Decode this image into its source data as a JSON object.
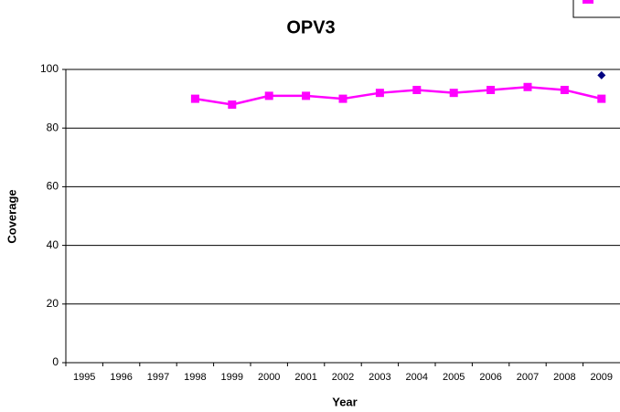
{
  "chart_data": {
    "type": "line",
    "title": "OPV3",
    "x_label": "Year",
    "y_label": "Coverage",
    "categories": [
      "1995",
      "1996",
      "1997",
      "1998",
      "1999",
      "2000",
      "2001",
      "2002",
      "2003",
      "2004",
      "2005",
      "2006",
      "2007",
      "2008",
      "2009"
    ],
    "series": [
      {
        "color": "#ff00ff",
        "marker": "square",
        "values": [
          null,
          null,
          null,
          90,
          88,
          91,
          91,
          90,
          92,
          93,
          92,
          93,
          94,
          93,
          90
        ]
      },
      {
        "color": "#000080",
        "marker": "diamond",
        "values": [
          null,
          null,
          null,
          null,
          null,
          null,
          null,
          null,
          null,
          null,
          null,
          null,
          null,
          null,
          98
        ]
      }
    ],
    "ylim": [
      0,
      100
    ],
    "yticks": [
      0,
      20,
      40,
      60,
      80,
      100
    ],
    "grid": true
  }
}
